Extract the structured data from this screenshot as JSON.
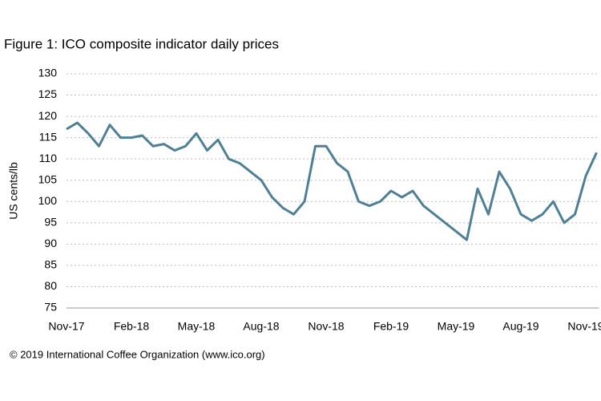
{
  "chart_data": {
    "type": "line",
    "title": "Figure 1: ICO composite indicator daily prices",
    "y_label": "US cents/lb",
    "footer": "© 2019 International Coffee Organization (www.ico.org)",
    "categories": [
      "Nov-17",
      null,
      null,
      null,
      null,
      null,
      "Feb-18",
      null,
      null,
      null,
      null,
      null,
      "May-18",
      null,
      null,
      null,
      null,
      null,
      "Aug-18",
      null,
      null,
      null,
      null,
      null,
      "Nov-18",
      null,
      null,
      null,
      null,
      null,
      "Feb-19",
      null,
      null,
      null,
      null,
      null,
      "May-19",
      null,
      null,
      null,
      null,
      null,
      "Aug-19",
      null,
      null,
      null,
      null,
      null,
      "Nov-19",
      null
    ],
    "series": [
      {
        "name": "ICO composite indicator",
        "color": "#4f8096",
        "values": [
          117,
          118.5,
          116,
          113,
          118,
          115,
          115,
          115.5,
          113,
          113.5,
          112,
          113,
          116,
          112,
          114.5,
          110,
          109,
          107,
          105,
          101,
          98.5,
          97,
          100,
          113,
          113,
          109,
          107,
          100,
          99,
          100,
          102.5,
          101,
          102.5,
          99,
          97,
          95,
          93,
          91,
          103,
          97,
          107,
          103,
          97,
          95.5,
          97,
          100,
          95,
          97,
          106,
          111.5
        ]
      }
    ],
    "ylim": [
      75,
      130
    ],
    "yticks": [
      75,
      80,
      85,
      90,
      95,
      100,
      105,
      110,
      115,
      120,
      125,
      130
    ],
    "grid": true
  }
}
